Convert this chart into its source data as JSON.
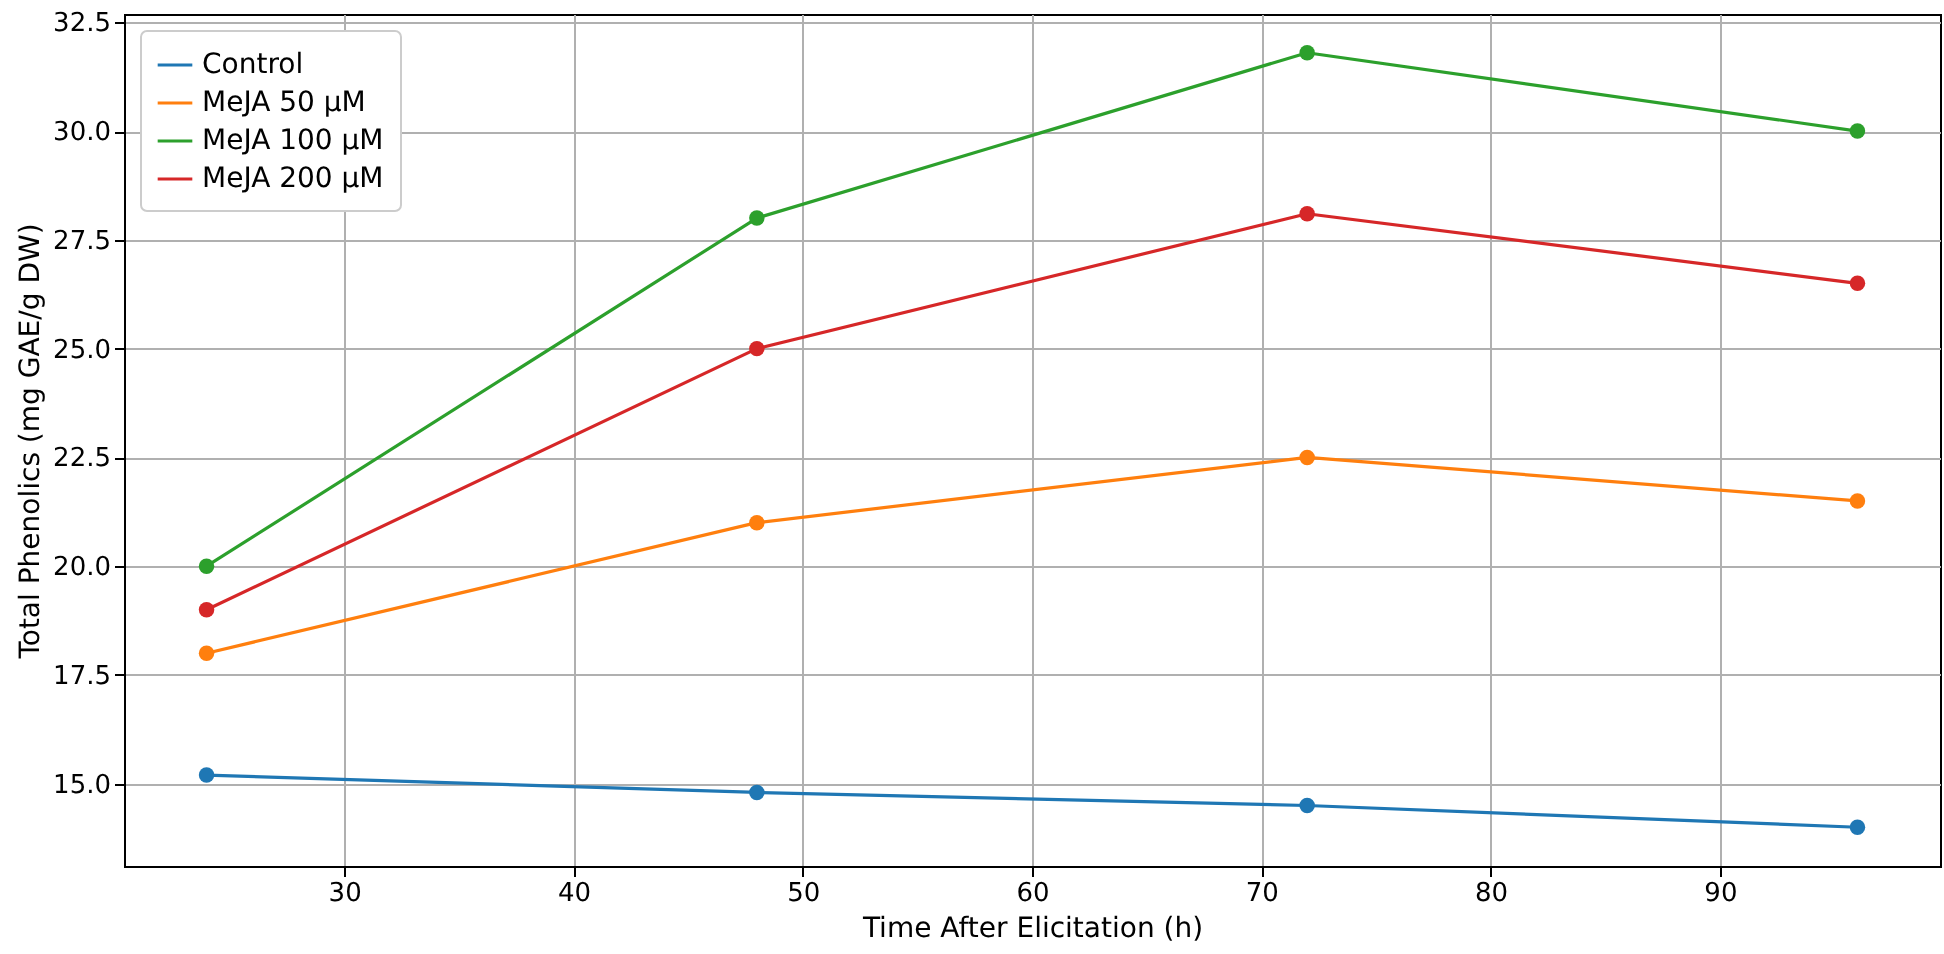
{
  "chart_data": {
    "type": "line",
    "xlabel": "Time After Elicitation (h)",
    "ylabel": "Total Phenolics (mg GAE/g DW)",
    "x": [
      24,
      48,
      72,
      96
    ],
    "series": [
      {
        "name": "Control",
        "color": "#1f77b4",
        "values": [
          15.2,
          14.8,
          14.5,
          14.0
        ]
      },
      {
        "name": "MeJA 50 μM",
        "color": "#ff7f0e",
        "values": [
          18.0,
          21.0,
          22.5,
          21.5
        ]
      },
      {
        "name": "MeJA 100 μM",
        "color": "#2ca02c",
        "values": [
          20.0,
          28.0,
          31.8,
          30.0
        ]
      },
      {
        "name": "MeJA 200 μM",
        "color": "#d62728",
        "values": [
          19.0,
          25.0,
          28.1,
          26.5
        ]
      }
    ],
    "xlim": [
      20.4,
      99.6
    ],
    "xticks": [
      30,
      40,
      50,
      60,
      70,
      80,
      90
    ],
    "ylim": [
      13.11,
      32.69
    ],
    "yticks": [
      {
        "value": 15,
        "label": "15.0"
      },
      {
        "value": 17.5,
        "label": "17.5"
      },
      {
        "value": 20,
        "label": "20.0"
      },
      {
        "value": 22.5,
        "label": "22.5"
      },
      {
        "value": 25,
        "label": "25.0"
      },
      {
        "value": 27.5,
        "label": "27.5"
      },
      {
        "value": 30,
        "label": "30.0"
      },
      {
        "value": 32.5,
        "label": "32.5"
      }
    ],
    "grid": true,
    "legend": "top left",
    "marker": "circle",
    "line_style": "solid"
  }
}
